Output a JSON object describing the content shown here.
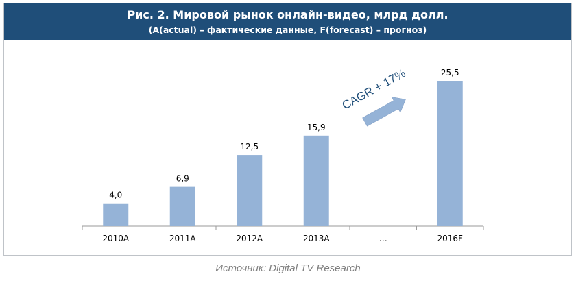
{
  "header": {
    "title": "Рис. 2. Мировой рынок онлайн-видео, млрд долл.",
    "subtitle": "(A(actual) – фактические данные, F(forecast) – прогноз)"
  },
  "chart_data": {
    "type": "bar",
    "categories": [
      "2010A",
      "2011A",
      "2012A",
      "2013A",
      "…",
      "2016F"
    ],
    "values": [
      4.0,
      6.9,
      12.5,
      15.9,
      null,
      25.5
    ],
    "value_labels": [
      "4,0",
      "6,9",
      "12,5",
      "15,9",
      "",
      "25,5"
    ],
    "bar_color": "#95b3d7",
    "annotation": "CAGR + 17%",
    "arrow_color": "#95b3d7",
    "annotation_color": "#1f4e79",
    "grid": false,
    "legend": "none"
  },
  "source": "Источник: Digital TV Research",
  "colors": {
    "banner": "#1f4e79",
    "text": "#000000",
    "source": "#7f7f7f"
  }
}
